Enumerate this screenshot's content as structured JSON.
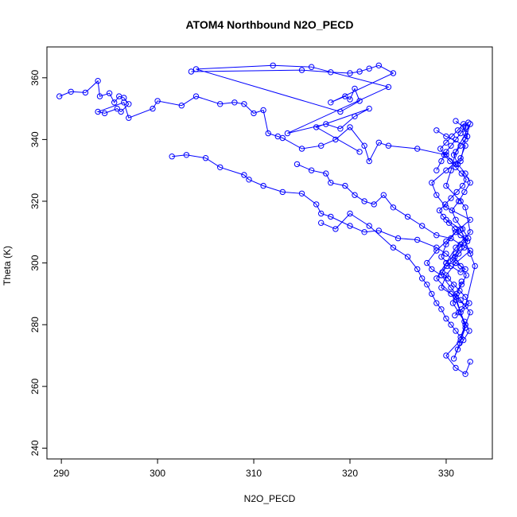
{
  "chart_data": {
    "type": "scatter",
    "title": "ATOM4 Northbound N2O_PECD",
    "xlabel": "N2O_PECD",
    "ylabel": "Theta (K)",
    "xlim": [
      288.5,
      334.8
    ],
    "ylim": [
      236.5,
      370.0
    ],
    "xticks": [
      290,
      300,
      310,
      320,
      330
    ],
    "yticks": [
      240,
      260,
      280,
      300,
      320,
      340,
      360
    ],
    "grid": false,
    "color": "#0000ff",
    "series": [
      {
        "mode": "line+markers",
        "x": [
          289.8,
          291.0,
          292.5,
          293.8,
          294.0,
          295.0,
          295.5,
          296.0,
          296.5,
          297.0,
          296.2,
          295.8,
          294.5,
          293.8,
          296.5,
          297.0,
          299.5,
          300.0,
          302.5,
          304.0,
          306.5,
          308.0,
          309.0,
          310.0,
          311.0,
          311.5,
          312.5,
          313.0,
          315.0,
          317.0,
          318.5,
          320.0,
          321.5,
          322.0,
          323.0,
          324.0,
          327.0,
          330.0,
          331.0,
          331.5,
          332.0,
          332.5,
          332.0,
          331.0,
          330.5,
          330.0,
          331.5,
          332.0,
          332.5,
          331.0,
          330.0,
          329.0,
          330.5,
          331.0,
          332.0,
          331.5,
          330.0,
          331.0,
          332.0,
          332.5
        ],
        "y": [
          354.0,
          355.5,
          355.2,
          359.0,
          354.0,
          355.0,
          352.0,
          354.0,
          353.5,
          351.5,
          349.0,
          350.0,
          348.5,
          349.0,
          352.0,
          347.0,
          350.0,
          352.5,
          351.0,
          354.0,
          351.5,
          352.0,
          351.5,
          348.5,
          349.5,
          342.0,
          341.0,
          340.5,
          337.0,
          338.0,
          340.0,
          344.0,
          338.0,
          333.0,
          339.0,
          338.0,
          337.0,
          335.0,
          332.0,
          333.0,
          340.0,
          345.0,
          342.0,
          336.0,
          330.0,
          325.0,
          320.0,
          318.0,
          310.0,
          305.0,
          300.0,
          295.0,
          290.0,
          288.0,
          280.0,
          275.0,
          270.0,
          266.0,
          264.0,
          268.0
        ]
      },
      {
        "mode": "line+markers",
        "x": [
          303.5,
          315.0,
          318.0,
          320.0,
          321.0,
          322.0,
          323.0,
          324.5,
          318.0,
          319.5,
          320.0,
          320.5,
          321.0,
          319.0,
          304.0,
          312.0,
          316.0,
          324.0,
          313.5,
          317.5,
          319.0,
          320.5,
          322.0,
          316.5,
          321.0
        ],
        "y": [
          362.0,
          362.5,
          361.8,
          361.5,
          362.0,
          363.0,
          364.0,
          361.5,
          352.0,
          354.0,
          353.0,
          356.5,
          352.5,
          349.0,
          362.8,
          364.0,
          363.5,
          357.0,
          342.0,
          345.0,
          343.5,
          347.5,
          350.0,
          344.0,
          336.0
        ]
      },
      {
        "mode": "line+markers",
        "x": [
          301.5,
          303.0,
          305.0,
          306.5,
          309.0,
          309.5,
          311.0,
          313.0,
          315.0,
          316.5,
          317.0,
          318.0,
          320.0,
          321.5,
          323.0,
          325.0,
          327.0,
          329.0,
          330.0,
          331.0,
          332.0,
          331.5,
          330.5,
          329.5,
          330.0,
          331.0,
          332.5,
          330.0,
          329.0,
          328.5,
          330.0,
          331.5,
          332.0,
          330.0,
          329.0
        ],
        "y": [
          334.5,
          335.0,
          334.0,
          331.0,
          328.5,
          327.0,
          325.0,
          323.0,
          322.5,
          319.0,
          316.0,
          315.0,
          312.0,
          310.0,
          310.5,
          308.0,
          307.5,
          305.0,
          303.0,
          300.0,
          298.0,
          297.0,
          299.0,
          302.0,
          306.0,
          310.0,
          314.0,
          318.0,
          322.0,
          326.0,
          330.0,
          334.0,
          338.0,
          341.0,
          343.0
        ]
      },
      {
        "mode": "line+markers",
        "x": [
          314.5,
          316.0,
          317.5,
          318.0,
          319.5,
          320.5,
          321.5,
          322.5,
          323.5,
          324.5,
          326.0,
          327.5,
          329.0,
          330.5,
          331.5,
          332.5,
          331.0,
          330.0,
          329.5,
          331.0,
          332.0,
          333.0,
          332.5,
          331.5,
          330.0
        ],
        "y": [
          332.0,
          330.0,
          329.0,
          326.0,
          325.0,
          322.0,
          320.0,
          319.0,
          322.0,
          318.0,
          315.0,
          312.0,
          309.0,
          308.0,
          306.0,
          304.0,
          300.0,
          296.0,
          292.0,
          289.0,
          286.0,
          299.0,
          303.0,
          311.0,
          314.0
        ]
      },
      {
        "mode": "line+markers",
        "x": [
          317.0,
          318.5,
          320.0,
          322.0,
          324.5,
          326.0,
          327.0,
          327.5,
          328.0,
          328.5,
          329.0,
          329.5,
          330.0,
          330.5,
          331.0,
          331.5,
          332.0,
          332.5,
          331.5,
          330.5,
          329.5,
          328.5,
          328.0,
          329.0,
          330.0,
          331.0,
          332.0,
          331.0,
          330.0,
          329.5
        ],
        "y": [
          313.0,
          311.0,
          316.0,
          312.0,
          305.0,
          302.0,
          298.0,
          295.0,
          293.0,
          290.0,
          287.0,
          285.0,
          282.0,
          280.0,
          278.0,
          276.0,
          280.0,
          284.0,
          288.0,
          292.0,
          296.0,
          298.0,
          300.0,
          304.0,
          307.0,
          310.0,
          308.0,
          303.0,
          300.0,
          296.0
        ]
      },
      {
        "mode": "line+markers",
        "x": [
          329.0,
          329.5,
          330.0,
          330.5,
          331.0,
          331.5,
          332.0,
          332.3,
          331.8,
          331.2,
          330.6,
          330.0,
          329.4,
          329.8,
          330.4,
          331.0,
          331.6,
          332.1,
          331.7,
          331.1,
          330.5,
          329.9,
          329.3,
          329.7,
          330.3,
          330.9,
          331.5,
          332.2,
          331.9,
          331.3,
          330.7,
          330.1,
          329.6,
          330.2,
          330.8,
          331.4,
          332.0,
          332.4,
          331.6,
          330.9
        ],
        "y": [
          330.0,
          333.0,
          336.0,
          338.0,
          340.0,
          342.0,
          344.0,
          345.5,
          345.0,
          343.0,
          341.0,
          339.0,
          337.0,
          335.0,
          333.0,
          331.0,
          329.0,
          327.0,
          325.0,
          323.0,
          321.0,
          319.0,
          317.0,
          315.0,
          313.0,
          311.0,
          309.0,
          307.0,
          305.0,
          303.0,
          301.0,
          299.0,
          297.0,
          295.0,
          293.0,
          291.0,
          289.0,
          287.0,
          285.0,
          283.0
        ]
      },
      {
        "mode": "line+markers",
        "x": [
          331.0,
          331.8,
          332.2,
          331.5,
          330.8,
          331.2,
          332.0,
          332.5,
          331.9,
          331.3,
          330.6,
          331.0,
          331.7,
          332.3,
          331.4,
          330.9,
          331.5,
          332.1,
          331.6,
          331.1,
          330.7,
          331.3,
          331.9,
          332.4,
          331.8,
          331.2,
          330.8,
          331.4,
          332.0,
          331.5,
          331.0,
          331.6
        ],
        "y": [
          346.0,
          344.0,
          341.0,
          338.0,
          335.0,
          332.0,
          329.0,
          326.0,
          323.0,
          320.0,
          317.0,
          314.0,
          311.0,
          308.0,
          305.0,
          302.0,
          299.0,
          296.0,
          293.0,
          290.0,
          287.0,
          284.0,
          281.0,
          278.0,
          275.0,
          272.0,
          269.0,
          274.0,
          279.0,
          284.0,
          289.0,
          294.0
        ]
      }
    ]
  }
}
